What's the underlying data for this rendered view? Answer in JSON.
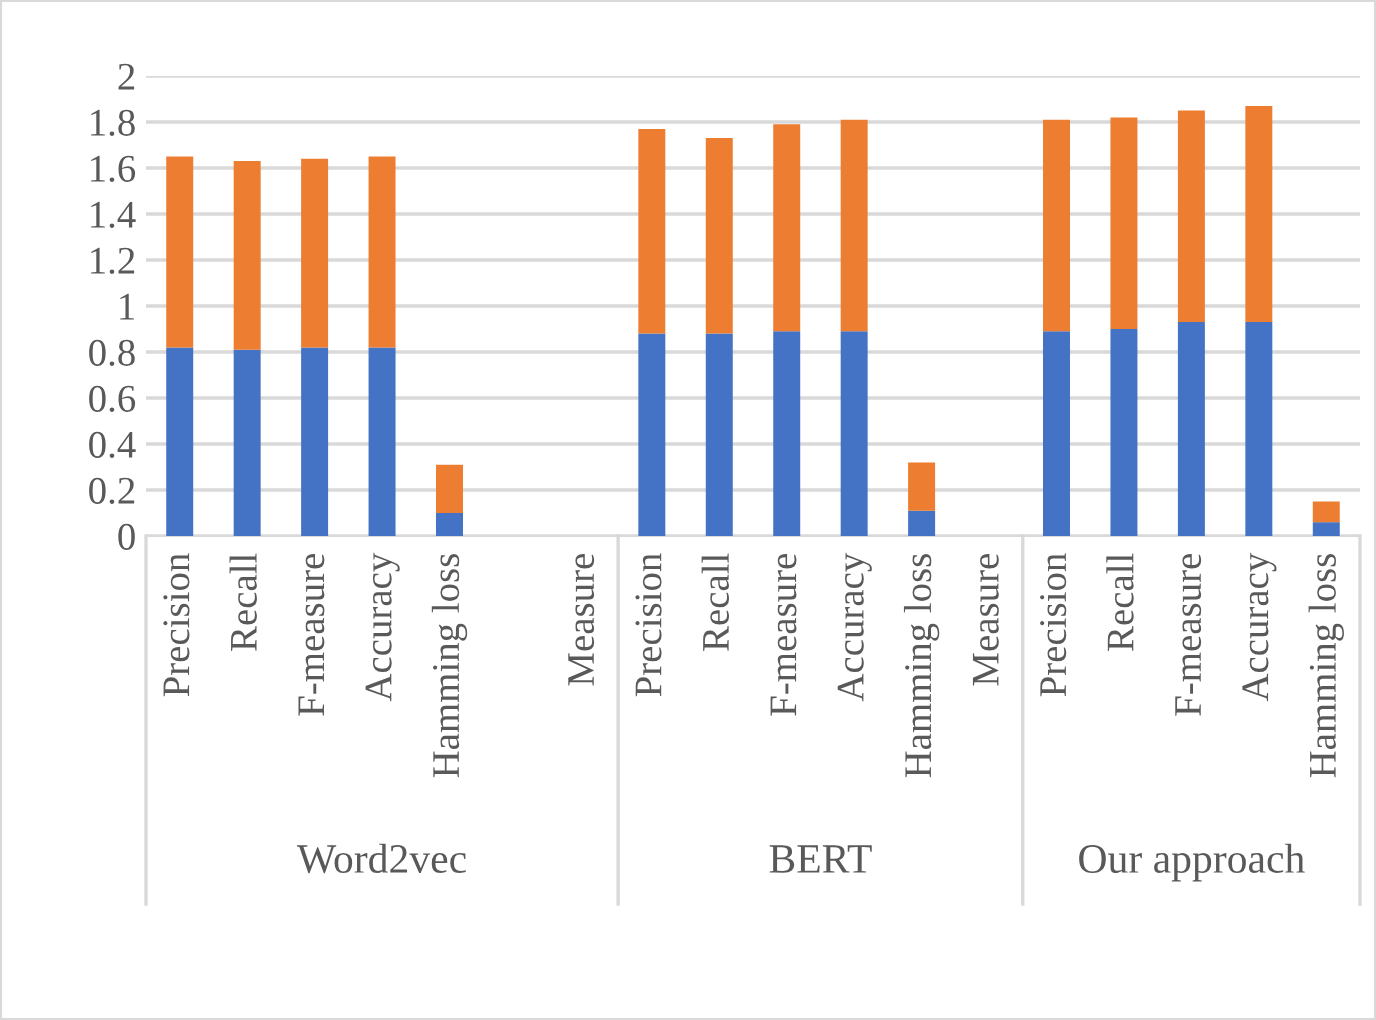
{
  "chart_data": {
    "type": "bar",
    "stacked": true,
    "categories": [
      "Precision",
      "Recall",
      "F-measure",
      "Accuracy",
      "Hamming loss",
      null,
      "Measure",
      "Precision",
      "Recall",
      "F-measure",
      "Accuracy",
      "Hamming loss",
      "Measure",
      "Precision",
      "Recall",
      "F-measure",
      "Accuracy",
      "Hamming loss"
    ],
    "series": [
      {
        "color": "#4472c4",
        "values": [
          0.82,
          0.81,
          0.82,
          0.82,
          0.1,
          null,
          null,
          0.88,
          0.88,
          0.89,
          0.89,
          0.11,
          null,
          0.89,
          0.9,
          0.93,
          0.93,
          0.06
        ]
      },
      {
        "color": "#ed7d31",
        "values": [
          0.83,
          0.82,
          0.82,
          0.83,
          0.21,
          null,
          null,
          0.89,
          0.85,
          0.9,
          0.92,
          0.21,
          null,
          0.92,
          0.92,
          0.92,
          0.94,
          0.09
        ]
      }
    ],
    "annotations": [
      "Word2vec",
      "BERT",
      "Our approach"
    ],
    "ylim": [
      0,
      2
    ],
    "yticks": [
      0,
      0.2,
      0.4,
      0.6,
      0.8,
      1,
      1.2,
      1.4,
      1.6,
      1.8,
      2
    ],
    "grid": "y"
  }
}
